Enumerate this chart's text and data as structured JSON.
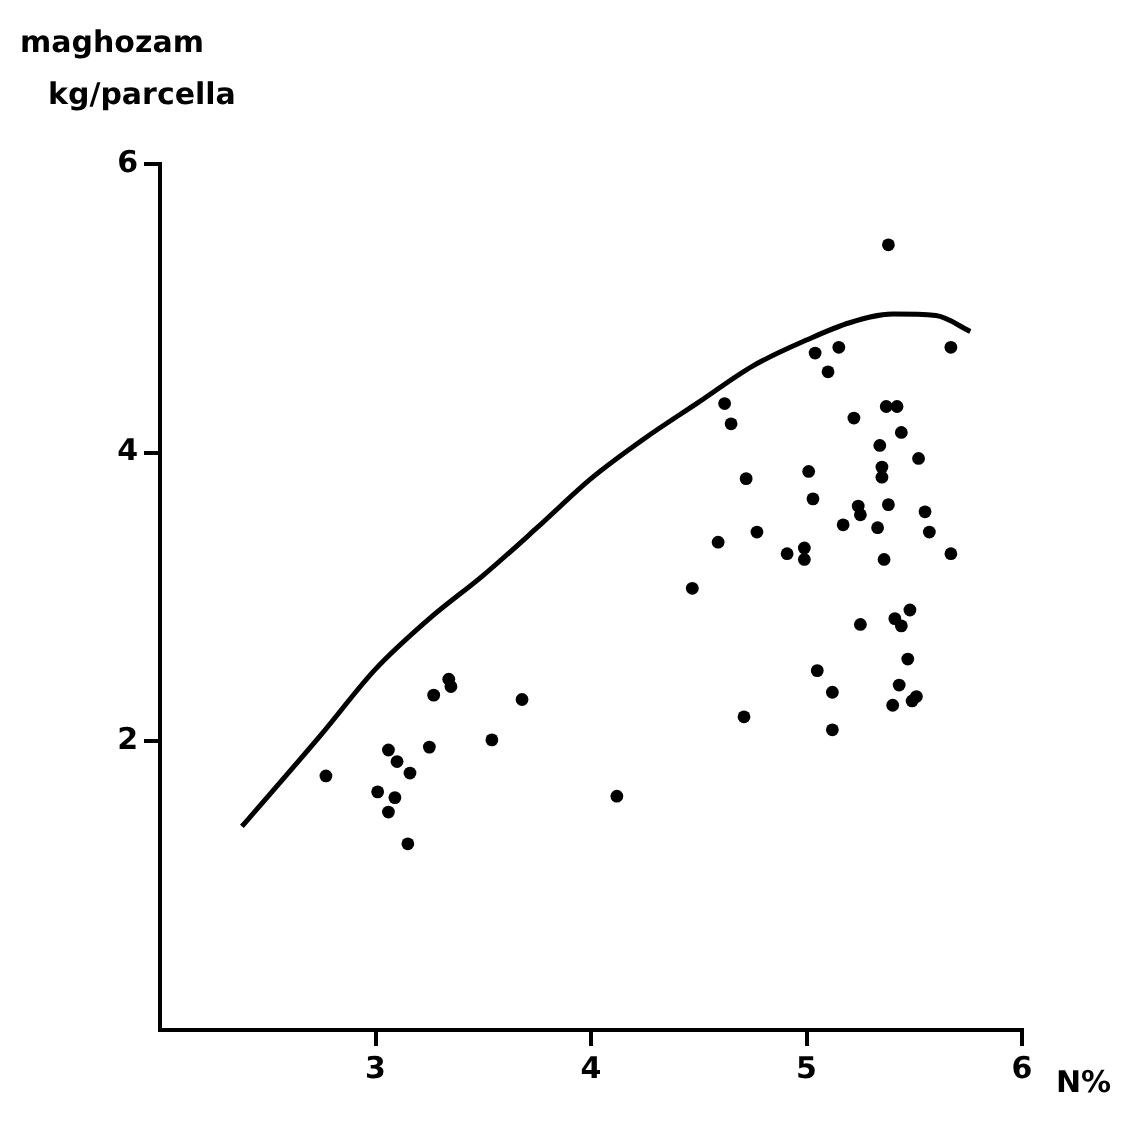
{
  "chart_data": {
    "type": "scatter",
    "xlabel": "N%",
    "ylabel": "maghozam\nkg/parcella",
    "xlim": [
      2,
      6
    ],
    "ylim": [
      0,
      6
    ],
    "xticks": [
      3,
      4,
      5,
      6
    ],
    "yticks": [
      2,
      4,
      6
    ],
    "grid": false,
    "series": [
      {
        "type": "scatter",
        "color": "#000000",
        "marker": "circle",
        "x": [
          2.77,
          3.34,
          3.35,
          3.27,
          3.68,
          3.06,
          3.1,
          3.16,
          3.25,
          3.54,
          3.01,
          3.09,
          3.06,
          3.15,
          4.12,
          4.47,
          4.62,
          4.65,
          4.72,
          4.77,
          4.59,
          4.91,
          4.99,
          4.99,
          5.01,
          5.03,
          5.22,
          5.37,
          5.42,
          5.44,
          5.34,
          5.35,
          5.35,
          5.52,
          5.24,
          5.25,
          5.17,
          5.33,
          5.38,
          5.55,
          5.57,
          5.67,
          5.36,
          5.25,
          5.41,
          5.48,
          5.44,
          5.47,
          5.05,
          5.12,
          5.43,
          5.4,
          5.49,
          5.51,
          4.71,
          5.12,
          5.04,
          5.1,
          5.15,
          5.38,
          5.67
        ],
        "values": [
          1.76,
          2.43,
          2.38,
          2.32,
          2.29,
          1.94,
          1.86,
          1.78,
          1.96,
          2.01,
          1.65,
          1.61,
          1.51,
          1.29,
          1.62,
          3.06,
          4.34,
          4.2,
          3.82,
          3.45,
          3.38,
          3.3,
          3.34,
          3.26,
          3.87,
          3.68,
          4.24,
          4.32,
          4.32,
          4.14,
          4.05,
          3.9,
          3.83,
          3.96,
          3.63,
          3.57,
          3.5,
          3.48,
          3.64,
          3.59,
          3.45,
          3.3,
          3.26,
          2.81,
          2.85,
          2.91,
          2.8,
          2.57,
          2.49,
          2.34,
          2.39,
          2.25,
          2.28,
          2.31,
          2.17,
          2.08,
          4.69,
          4.56,
          4.73,
          5.44,
          4.73
        ]
      },
      {
        "type": "line",
        "color": "#000000",
        "marker": "none",
        "line_style": "solid",
        "x": [
          2.38,
          2.75,
          3.0,
          3.25,
          3.5,
          3.75,
          4.0,
          4.25,
          4.5,
          4.75,
          5.0,
          5.2,
          5.4,
          5.6,
          5.76
        ],
        "values": [
          1.41,
          2.05,
          2.5,
          2.85,
          3.15,
          3.48,
          3.82,
          4.1,
          4.35,
          4.6,
          4.78,
          4.9,
          4.96,
          4.95,
          4.84
        ]
      }
    ]
  }
}
